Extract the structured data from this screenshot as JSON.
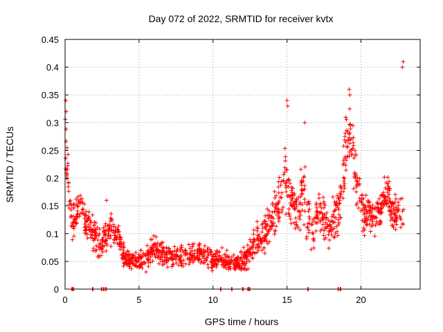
{
  "chart_data": {
    "type": "scatter",
    "title": "Day 072 of 2022, SRMTID for receiver kvtx",
    "xlabel": "GPS time / hours",
    "ylabel": "SRMTID / TECUs",
    "xlim": [
      0,
      24
    ],
    "ylim": [
      0,
      0.45
    ],
    "grid": true,
    "x_ticks": [
      0,
      5,
      10,
      15,
      20
    ],
    "y_ticks": [
      0,
      0.05,
      0.1,
      0.15,
      0.2,
      0.25,
      0.3,
      0.35,
      0.4,
      0.45
    ],
    "x_tick_labels": [
      "0",
      "5",
      "10",
      "15",
      "20"
    ],
    "y_tick_labels": [
      "0",
      "0.05",
      "0.1",
      "0.15",
      "0.2",
      "0.25",
      "0.3",
      "0.35",
      "0.4",
      "0.45"
    ],
    "series": [
      {
        "name": "SRMTID",
        "marker": "plus",
        "color": "#ff0000",
        "profile_x": [
          0.0,
          0.1,
          0.3,
          0.5,
          0.8,
          1.0,
          1.3,
          1.6,
          1.9,
          2.2,
          2.5,
          2.8,
          3.2,
          3.6,
          4.0,
          4.5,
          5.0,
          5.5,
          6.0,
          6.5,
          7.0,
          7.5,
          8.0,
          8.5,
          9.0,
          9.5,
          10.0,
          10.5,
          11.0,
          11.5,
          12.0,
          12.5,
          13.0,
          13.5,
          14.0,
          14.3,
          14.6,
          14.9,
          15.2,
          15.5,
          15.8,
          16.1,
          16.4,
          16.7,
          17.0,
          17.3,
          17.6,
          17.9,
          18.2,
          18.5,
          18.8,
          19.1,
          19.3,
          19.6,
          19.9,
          20.2,
          20.6,
          21.0,
          21.4,
          21.8,
          22.2,
          22.6,
          22.9
        ],
        "profile_y": [
          0.28,
          0.24,
          0.17,
          0.12,
          0.14,
          0.15,
          0.13,
          0.11,
          0.1,
          0.09,
          0.08,
          0.1,
          0.11,
          0.09,
          0.06,
          0.05,
          0.05,
          0.055,
          0.07,
          0.065,
          0.06,
          0.06,
          0.055,
          0.06,
          0.065,
          0.06,
          0.05,
          0.055,
          0.05,
          0.045,
          0.05,
          0.07,
          0.09,
          0.1,
          0.12,
          0.14,
          0.16,
          0.2,
          0.17,
          0.15,
          0.14,
          0.18,
          0.13,
          0.1,
          0.13,
          0.14,
          0.12,
          0.11,
          0.13,
          0.14,
          0.2,
          0.28,
          0.3,
          0.22,
          0.17,
          0.13,
          0.14,
          0.13,
          0.15,
          0.18,
          0.12,
          0.15,
          0.13
        ],
        "spread": [
          0.07,
          0.06,
          0.05,
          0.04,
          0.04,
          0.04,
          0.045,
          0.04,
          0.035,
          0.035,
          0.03,
          0.035,
          0.035,
          0.03,
          0.025,
          0.02,
          0.02,
          0.025,
          0.03,
          0.025,
          0.025,
          0.025,
          0.025,
          0.025,
          0.025,
          0.025,
          0.02,
          0.02,
          0.02,
          0.015,
          0.02,
          0.03,
          0.035,
          0.04,
          0.045,
          0.05,
          0.06,
          0.08,
          0.06,
          0.05,
          0.06,
          0.08,
          0.05,
          0.04,
          0.05,
          0.05,
          0.04,
          0.04,
          0.05,
          0.05,
          0.07,
          0.07,
          0.07,
          0.06,
          0.05,
          0.04,
          0.04,
          0.04,
          0.045,
          0.05,
          0.04,
          0.05,
          0.04
        ],
        "sample_count": 1500,
        "outliers": [
          {
            "x": 22.85,
            "y": 0.41
          },
          {
            "x": 22.8,
            "y": 0.4
          },
          {
            "x": 19.2,
            "y": 0.36
          },
          {
            "x": 19.25,
            "y": 0.35
          },
          {
            "x": 15.0,
            "y": 0.34
          },
          {
            "x": 15.05,
            "y": 0.33
          },
          {
            "x": 0.05,
            "y": 0.34
          },
          {
            "x": 0.08,
            "y": 0.32
          },
          {
            "x": 16.2,
            "y": 0.3
          },
          {
            "x": 2.8,
            "y": 0.16
          }
        ],
        "zero_values_x": [
          0.45,
          0.55,
          1.85,
          2.45,
          2.6,
          2.75,
          10.5,
          11.25,
          12.0,
          12.35,
          12.45,
          16.4,
          18.45,
          18.6
        ]
      }
    ]
  }
}
